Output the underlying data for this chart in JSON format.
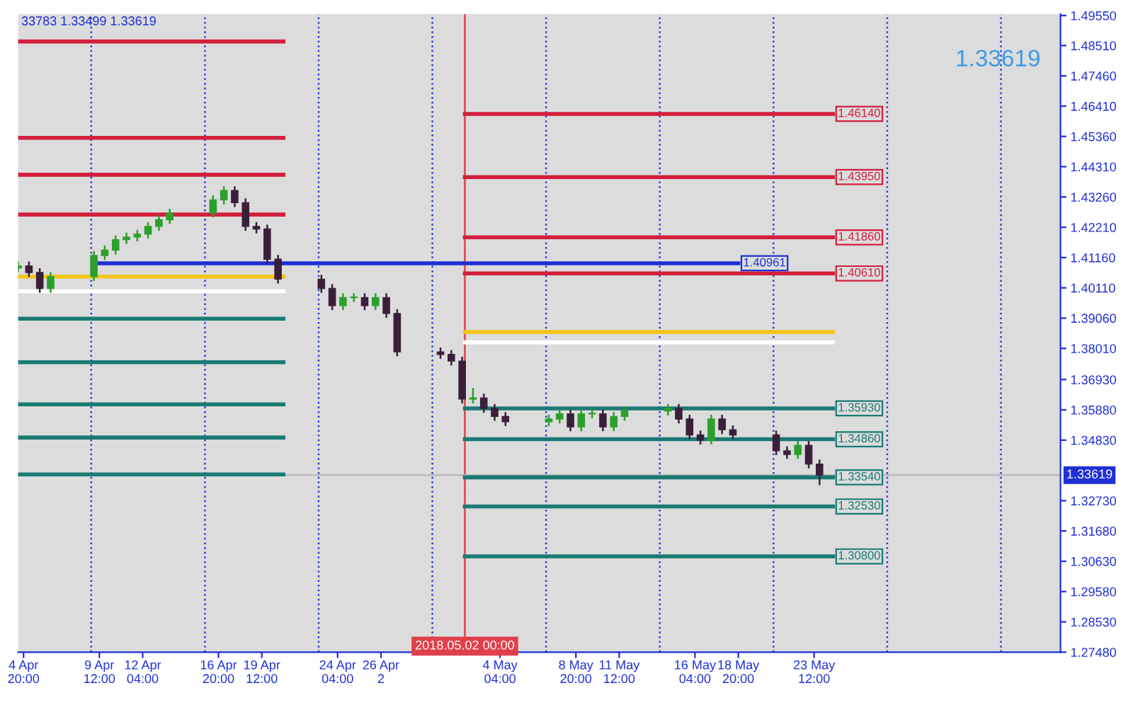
{
  "chart_data": {
    "type": "candlestick",
    "x": [
      "2018-04-04T12:00",
      "2018-04-05T04:00",
      "2018-04-05T20:00",
      "2018-04-06T12:00",
      "2018-04-09T04:00",
      "2018-04-09T20:00",
      "2018-04-10T12:00",
      "2018-04-11T04:00",
      "2018-04-11T20:00",
      "2018-04-12T12:00",
      "2018-04-13T04:00",
      "2018-04-13T20:00",
      "2018-04-16T12:00",
      "2018-04-17T04:00",
      "2018-04-17T20:00",
      "2018-04-18T12:00",
      "2018-04-19T04:00",
      "2018-04-19T20:00",
      "2018-04-20T12:00",
      "2018-04-23T04:00",
      "2018-04-23T20:00",
      "2018-04-24T12:00",
      "2018-04-25T04:00",
      "2018-04-25T20:00",
      "2018-04-26T12:00",
      "2018-04-27T04:00",
      "2018-04-27T20:00",
      "2018-04-30T12:00",
      "2018-05-01T04:00",
      "2018-05-01T20:00",
      "2018-05-02T12:00",
      "2018-05-03T04:00",
      "2018-05-03T20:00",
      "2018-05-04T12:00",
      "2018-05-07T04:00",
      "2018-05-07T20:00",
      "2018-05-08T12:00",
      "2018-05-09T04:00",
      "2018-05-09T20:00",
      "2018-05-10T12:00",
      "2018-05-11T04:00",
      "2018-05-11T20:00",
      "2018-05-14T12:00",
      "2018-05-15T04:00",
      "2018-05-15T20:00",
      "2018-05-16T12:00",
      "2018-05-17T04:00",
      "2018-05-17T20:00",
      "2018-05-18T12:00",
      "2018-05-21T04:00",
      "2018-05-21T20:00",
      "2018-05-22T12:00",
      "2018-05-23T04:00",
      "2018-05-23T20:00"
    ],
    "ohlc": [
      [
        1.408,
        1.4099,
        1.4068,
        1.4087
      ],
      [
        1.4087,
        1.4099,
        1.4052,
        1.4064
      ],
      [
        1.4064,
        1.4076,
        1.3997,
        1.4009
      ],
      [
        1.4009,
        1.4062,
        1.3997,
        1.405
      ],
      [
        1.405,
        1.4135,
        1.4038,
        1.4123
      ],
      [
        1.4123,
        1.4154,
        1.4111,
        1.4142
      ],
      [
        1.4142,
        1.419,
        1.413,
        1.4178
      ],
      [
        1.4178,
        1.4199,
        1.4166,
        1.4187
      ],
      [
        1.4187,
        1.4209,
        1.4175,
        1.4197
      ],
      [
        1.4197,
        1.4236,
        1.4185,
        1.4224
      ],
      [
        1.4224,
        1.4259,
        1.4212,
        1.4247
      ],
      [
        1.4247,
        1.4282,
        1.4235,
        1.427
      ],
      [
        1.427,
        1.4328,
        1.4258,
        1.4316
      ],
      [
        1.4316,
        1.436,
        1.4304,
        1.4348
      ],
      [
        1.4348,
        1.436,
        1.4294,
        1.4306
      ],
      [
        1.4306,
        1.4318,
        1.4212,
        1.4224
      ],
      [
        1.4224,
        1.4236,
        1.4203,
        1.4215
      ],
      [
        1.4215,
        1.4227,
        1.4098,
        1.411
      ],
      [
        1.411,
        1.4122,
        1.4029,
        1.4041
      ],
      [
        1.4041,
        1.4053,
        1.3997,
        1.4009
      ],
      [
        1.4009,
        1.4021,
        1.3937,
        1.3949
      ],
      [
        1.3949,
        1.3989,
        1.3937,
        1.3977
      ],
      [
        1.3977,
        1.3989,
        1.3965,
        1.3977
      ],
      [
        1.3977,
        1.3989,
        1.3937,
        1.3949
      ],
      [
        1.3949,
        1.3989,
        1.3937,
        1.3977
      ],
      [
        1.3977,
        1.3989,
        1.391,
        1.3922
      ],
      [
        1.3922,
        1.3934,
        1.3777,
        1.3789
      ],
      [
        1.3789,
        1.3801,
        1.3768,
        1.378
      ],
      [
        1.378,
        1.3792,
        1.3745,
        1.3757
      ],
      [
        1.3757,
        1.3769,
        1.3613,
        1.3625
      ],
      [
        1.3625,
        1.3661,
        1.3613,
        1.3629
      ],
      [
        1.3629,
        1.3641,
        1.3581,
        1.3593
      ],
      [
        1.3593,
        1.3605,
        1.3553,
        1.3565
      ],
      [
        1.3565,
        1.3577,
        1.3535,
        1.3547
      ],
      [
        1.3547,
        1.3568,
        1.3535,
        1.3556
      ],
      [
        1.3556,
        1.3586,
        1.3544,
        1.3574
      ],
      [
        1.3574,
        1.3586,
        1.3517,
        1.3529
      ],
      [
        1.3529,
        1.3586,
        1.3517,
        1.3574
      ],
      [
        1.3574,
        1.3586,
        1.3562,
        1.3574
      ],
      [
        1.3574,
        1.3586,
        1.3517,
        1.3529
      ],
      [
        1.3529,
        1.3577,
        1.3517,
        1.3565
      ],
      [
        1.3565,
        1.3596,
        1.3553,
        1.3584
      ],
      [
        1.3584,
        1.3605,
        1.3572,
        1.3593
      ],
      [
        1.3593,
        1.3605,
        1.3544,
        1.3556
      ],
      [
        1.3556,
        1.3568,
        1.3489,
        1.3501
      ],
      [
        1.3501,
        1.3513,
        1.3471,
        1.3483
      ],
      [
        1.3483,
        1.3568,
        1.3471,
        1.3556
      ],
      [
        1.3556,
        1.3568,
        1.3507,
        1.3519
      ],
      [
        1.3519,
        1.3531,
        1.3489,
        1.3501
      ],
      [
        1.3501,
        1.3513,
        1.3434,
        1.3446
      ],
      [
        1.3446,
        1.3458,
        1.3421,
        1.3433
      ],
      [
        1.3433,
        1.3477,
        1.3421,
        1.3465
      ],
      [
        1.3465,
        1.3477,
        1.3388,
        1.34
      ],
      [
        1.34,
        1.3412,
        1.333,
        1.33619
      ]
    ],
    "colors": [
      "#2ca02c",
      "#3a1f3a",
      "#3a1f3a",
      "#2ca02c",
      "#2ca02c",
      "#2ca02c",
      "#2ca02c",
      "#2ca02c",
      "#2ca02c",
      "#2ca02c",
      "#2ca02c",
      "#2ca02c",
      "#2ca02c",
      "#2ca02c",
      "#3a1f3a",
      "#3a1f3a",
      "#3a1f3a",
      "#3a1f3a",
      "#3a1f3a",
      "#3a1f3a",
      "#3a1f3a",
      "#2ca02c",
      "#2ca02c",
      "#3a1f3a",
      "#2ca02c",
      "#3a1f3a",
      "#3a1f3a",
      "#3a1f3a",
      "#3a1f3a",
      "#3a1f3a",
      "#2ca02c",
      "#3a1f3a",
      "#3a1f3a",
      "#3a1f3a",
      "#2ca02c",
      "#2ca02c",
      "#3a1f3a",
      "#2ca02c",
      "#2ca02c",
      "#3a1f3a",
      "#2ca02c",
      "#2ca02c",
      "#2ca02c",
      "#3a1f3a",
      "#3a1f3a",
      "#3a1f3a",
      "#2ca02c",
      "#3a1f3a",
      "#3a1f3a",
      "#3a1f3a",
      "#3a1f3a",
      "#2ca02c",
      "#3a1f3a",
      "#3a1f3a"
    ],
    "series": [
      {
        "type": "line",
        "color": "#d21f3c",
        "x": [
          "2018-04-04T12:00",
          "2018-04-20T20:00"
        ],
        "values": [
          1.4865,
          1.4865
        ]
      },
      {
        "type": "line",
        "color": "#d21f3c",
        "x": [
          "2018-04-04T12:00",
          "2018-04-20T20:00"
        ],
        "values": [
          1.4531,
          1.4531
        ]
      },
      {
        "type": "line",
        "color": "#d21f3c",
        "x": [
          "2018-04-04T12:00",
          "2018-04-20T20:00"
        ],
        "values": [
          1.4403,
          1.4403
        ]
      },
      {
        "type": "line",
        "color": "#d21f3c",
        "x": [
          "2018-04-04T12:00",
          "2018-04-20T20:00"
        ],
        "values": [
          1.4265,
          1.4265
        ]
      },
      {
        "type": "line",
        "color": "#f5c518",
        "x": [
          "2018-04-04T12:00",
          "2018-04-20T20:00"
        ],
        "values": [
          1.405,
          1.405
        ]
      },
      {
        "type": "line",
        "color": "#ffffff",
        "x": [
          "2018-04-04T12:00",
          "2018-04-20T20:00"
        ],
        "values": [
          1.3999,
          1.3999
        ]
      },
      {
        "type": "line",
        "color": "#1a7a74",
        "x": [
          "2018-04-04T12:00",
          "2018-04-20T20:00"
        ],
        "values": [
          1.3904,
          1.3904
        ]
      },
      {
        "type": "line",
        "color": "#1a7a74",
        "x": [
          "2018-04-04T12:00",
          "2018-04-20T20:00"
        ],
        "values": [
          1.3753,
          1.3753
        ]
      },
      {
        "type": "line",
        "color": "#1a7a74",
        "x": [
          "2018-04-04T12:00",
          "2018-04-20T20:00"
        ],
        "values": [
          1.3607,
          1.3607
        ]
      },
      {
        "type": "line",
        "color": "#1a7a74",
        "x": [
          "2018-04-04T12:00",
          "2018-04-20T20:00"
        ],
        "values": [
          1.3492,
          1.3492
        ]
      },
      {
        "type": "line",
        "color": "#1a7a74",
        "x": [
          "2018-04-04T12:00",
          "2018-04-20T20:00"
        ],
        "values": [
          1.3364,
          1.3364
        ]
      },
      {
        "type": "line",
        "color": "#1f2fd6",
        "x": [
          "2018-04-09T04:00",
          "2018-05-18T20:00"
        ],
        "values": [
          1.40961,
          1.40961
        ],
        "value_labels": [
          null,
          "1.40961"
        ]
      },
      {
        "type": "line",
        "color": "#d21f3c",
        "x": [
          "2018-05-02T00:00",
          "2018-05-24T16:00"
        ],
        "values": [
          1.4614,
          1.4614
        ],
        "value_labels": [
          null,
          "1.46140"
        ]
      },
      {
        "type": "line",
        "color": "#d21f3c",
        "x": [
          "2018-05-02T00:00",
          "2018-05-24T16:00"
        ],
        "values": [
          1.4395,
          1.4395
        ],
        "value_labels": [
          null,
          "1.43950"
        ]
      },
      {
        "type": "line",
        "color": "#d21f3c",
        "x": [
          "2018-05-02T00:00",
          "2018-05-24T16:00"
        ],
        "values": [
          1.4186,
          1.4186
        ],
        "value_labels": [
          null,
          "1.41860"
        ]
      },
      {
        "type": "line",
        "color": "#d21f3c",
        "x": [
          "2018-05-02T00:00",
          "2018-05-24T16:00"
        ],
        "values": [
          1.4061,
          1.4061
        ],
        "value_labels": [
          null,
          "1.40610"
        ]
      },
      {
        "type": "line",
        "color": "#f5c518",
        "x": [
          "2018-05-02T00:00",
          "2018-05-24T16:00"
        ],
        "values": [
          1.3858,
          1.3858
        ]
      },
      {
        "type": "line",
        "color": "#ffffff",
        "x": [
          "2018-05-02T00:00",
          "2018-05-24T16:00"
        ],
        "values": [
          1.3822,
          1.3822
        ]
      },
      {
        "type": "line",
        "color": "#1a7a74",
        "x": [
          "2018-05-02T00:00",
          "2018-05-24T16:00"
        ],
        "values": [
          1.3593,
          1.3593
        ],
        "value_labels": [
          null,
          "1.35930"
        ]
      },
      {
        "type": "line",
        "color": "#1a7a74",
        "x": [
          "2018-05-02T00:00",
          "2018-05-24T16:00"
        ],
        "values": [
          1.3486,
          1.3486
        ],
        "value_labels": [
          null,
          "1.34860"
        ]
      },
      {
        "type": "line",
        "color": "#1a7a74",
        "x": [
          "2018-05-02T00:00",
          "2018-05-24T16:00"
        ],
        "values": [
          1.3354,
          1.3354
        ],
        "value_labels": [
          null,
          "1.33540"
        ]
      },
      {
        "type": "line",
        "color": "#1a7a74",
        "x": [
          "2018-05-02T00:00",
          "2018-05-24T16:00"
        ],
        "values": [
          1.3253,
          1.3253
        ],
        "value_labels": [
          null,
          "1.32530"
        ]
      },
      {
        "type": "line",
        "color": "#1a7a74",
        "x": [
          "2018-05-02T00:00",
          "2018-05-24T16:00"
        ],
        "values": [
          1.308,
          1.308
        ],
        "value_labels": [
          null,
          "1.30800"
        ]
      }
    ],
    "ref_lines": [
      {
        "axis": "x",
        "value": "2018-04-09T00:00",
        "color": "#2b3bd6",
        "line_style": "dotted"
      },
      {
        "axis": "x",
        "value": "2018-04-16T00:00",
        "color": "#2b3bd6",
        "line_style": "dotted"
      },
      {
        "axis": "x",
        "value": "2018-04-23T00:00",
        "color": "#2b3bd6",
        "line_style": "dotted"
      },
      {
        "axis": "x",
        "value": "2018-04-30T00:00",
        "color": "#2b3bd6",
        "line_style": "dotted"
      },
      {
        "axis": "x",
        "value": "2018-05-07T00:00",
        "color": "#2b3bd6",
        "line_style": "dotted"
      },
      {
        "axis": "x",
        "value": "2018-05-14T00:00",
        "color": "#2b3bd6",
        "line_style": "dotted"
      },
      {
        "axis": "x",
        "value": "2018-05-21T00:00",
        "color": "#2b3bd6",
        "line_style": "dotted"
      },
      {
        "axis": "x",
        "value": "2018-05-28T00:00",
        "color": "#2b3bd6",
        "line_style": "dotted"
      },
      {
        "axis": "x",
        "value": "2018-06-04T00:00",
        "color": "#2b3bd6",
        "line_style": "dotted"
      },
      {
        "axis": "x",
        "value": "2018-05-02T00:00",
        "color": "#e0404a",
        "line_style": "solid",
        "label": "2018.05.02 00:00"
      },
      {
        "axis": "y",
        "value": 1.33619,
        "color": "#b8b8b8",
        "line_style": "solid",
        "label": "1.33619"
      }
    ],
    "annotations": [
      "33783 1.33499 1.33619",
      "1.33619"
    ],
    "xlim": [
      "2018-04-04T12:00",
      "2018-06-07T16:00"
    ],
    "xticks": [
      {
        "value": "2018-04-04T20:00",
        "label": "4 Apr 20:00"
      },
      {
        "value": "2018-04-09T12:00",
        "label": "9 Apr 12:00"
      },
      {
        "value": "2018-04-12T04:00",
        "label": "12 Apr 04:00"
      },
      {
        "value": "2018-04-16T20:00",
        "label": "16 Apr 20:00"
      },
      {
        "value": "2018-04-19T12:00",
        "label": "19 Apr 12:00"
      },
      {
        "value": "2018-04-24T04:00",
        "label": "24 Apr 04:00"
      },
      {
        "value": "2018-04-26T20:00",
        "label": "26 Apr 2"
      },
      {
        "value": "2018-05-04T04:00",
        "label": "4 May 04:00"
      },
      {
        "value": "2018-05-08T20:00",
        "label": "8 May 20:00"
      },
      {
        "value": "2018-05-11T12:00",
        "label": "11 May 12:00"
      },
      {
        "value": "2018-05-16T04:00",
        "label": "16 May 04:00"
      },
      {
        "value": "2018-05-18T20:00",
        "label": "18 May 20:00"
      },
      {
        "value": "2018-05-23T12:00",
        "label": "23 May 12:00"
      }
    ],
    "ylim": [
      1.2748,
      1.496
    ],
    "yticks": [
      {
        "value": 1.4955,
        "label": "1.49550"
      },
      {
        "value": 1.4851,
        "label": "1.48510"
      },
      {
        "value": 1.4746,
        "label": "1.47460"
      },
      {
        "value": 1.4641,
        "label": "1.46410"
      },
      {
        "value": 1.4536,
        "label": "1.45360"
      },
      {
        "value": 1.4431,
        "label": "1.44310"
      },
      {
        "value": 1.4326,
        "label": "1.43260"
      },
      {
        "value": 1.4221,
        "label": "1.42210"
      },
      {
        "value": 1.4116,
        "label": "1.41160"
      },
      {
        "value": 1.4011,
        "label": "1.40110"
      },
      {
        "value": 1.3906,
        "label": "1.39060"
      },
      {
        "value": 1.3801,
        "label": "1.38010"
      },
      {
        "value": 1.3693,
        "label": "1.36930"
      },
      {
        "value": 1.3588,
        "label": "1.35880"
      },
      {
        "value": 1.3483,
        "label": "1.34830"
      },
      {
        "value": 1.3273,
        "label": "1.32730"
      },
      {
        "value": 1.3168,
        "label": "1.31680"
      },
      {
        "value": 1.3063,
        "label": "1.30630"
      },
      {
        "value": 1.2958,
        "label": "1.29580"
      },
      {
        "value": 1.2853,
        "label": "1.28530"
      },
      {
        "value": 1.2748,
        "label": "1.27480"
      }
    ]
  }
}
